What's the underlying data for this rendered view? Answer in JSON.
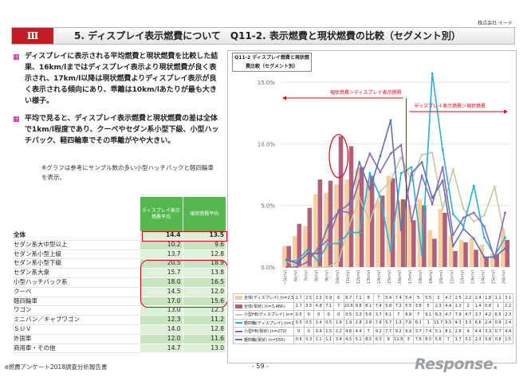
{
  "company": "株式会社 イード",
  "header": {
    "num": "Ⅲ",
    "title": "5. ディスプレイ表示燃費について　Q11-2. 表示燃費と現状燃費の比較（セグメント別）"
  },
  "bullets": [
    "ディスプレイに表示される平均燃費と現状燃費を比較した結果、16km/lまではディスプレイ表示より現状燃費が良く表示され、17km/l以降は現状燃費よりディスプレイ表示が良く表示される傾向にあり、乖離は10km/lあたりが最も大きい様子。",
    "平均で見ると、ディスプレイ表示燃費と現状燃費の差は全体で1km/l程度であり、クーペやセダン系小型下級、小型ハッチバック、軽四輪車でその乖離がやや大きい。"
  ],
  "note": "※グラフは参考にサンプル数の多い小型ハッチバックと軽四輪車を表示。",
  "table": {
    "headers": [
      "ディスプレイ表示燃費平均",
      "現状燃費平均"
    ],
    "rows": [
      {
        "label": "全体",
        "a": "14.4",
        "b": "13.5"
      },
      {
        "label": "セダン系大中型以上",
        "a": "10.2",
        "b": "9.6"
      },
      {
        "label": "セダン系小型上級",
        "a": "13.7",
        "b": "12.8"
      },
      {
        "label": "セダン系小型下級",
        "a": "20.5",
        "b": "18.9"
      },
      {
        "label": "セダン系大衆",
        "a": "15.7",
        "b": "13.8"
      },
      {
        "label": "小型ハッチバック系",
        "a": "18.0",
        "b": "16.5"
      },
      {
        "label": "クーペ",
        "a": "14.5",
        "b": "12.0"
      },
      {
        "label": "軽四輪車",
        "a": "17.0",
        "b": "15.6"
      },
      {
        "label": "ワゴン",
        "a": "13.0",
        "b": "12.3"
      },
      {
        "label": "ミニバン／キャブワゴン",
        "a": "12.3",
        "b": "11.2"
      },
      {
        "label": "ＳＵＶ",
        "a": "14.0",
        "b": "12.8"
      },
      {
        "label": "外国車",
        "a": "12.0",
        "b": "11.6"
      },
      {
        "label": "商用車・その他",
        "a": "14.7",
        "b": "13.0"
      }
    ]
  },
  "chart_title": "Q11-2 ディスプレイ燃費と現状燃費比較（セグメント別）",
  "annotations": {
    "left": "現状燃費＞ディスプレイ表示燃費",
    "right": "ディスプレイ表示燃費＞現状燃費"
  },
  "chart_data": {
    "type": "bar+line",
    "ylim": [
      0,
      15
    ],
    "yticks": [
      "0.0%",
      "5.0%",
      "10.0%",
      "15.0%"
    ],
    "categories": [
      "~5km/l",
      "6km/l",
      "7km/l",
      "8km/l",
      "9km/l",
      "10km/l",
      "11km/l",
      "12km/l",
      "13km/l",
      "14km/l",
      "15km/l",
      "16km/l",
      "17km/l",
      "18km/l",
      "19km/l",
      "20km/l",
      "21km/l",
      "22km/l",
      "23km/l",
      "24km/l",
      "25km/l",
      "26km/l",
      "27km/l",
      "28km/l",
      "29km/l",
      "30km/l~"
    ],
    "series": [
      {
        "name": "全体(ディスプレイ) (n=2,501)",
        "kind": "bar",
        "color": "#f5cfa0",
        "values": [
          1.7,
          2.5,
          3.3,
          5.9,
          6.0,
          6.7,
          7.1,
          8.0,
          7.0,
          5.4,
          7.4,
          5.4,
          5.0,
          5.5,
          3.0,
          4.7,
          2.5,
          2.2,
          2.4,
          1.8,
          1.1,
          3.1,
          0,
          0,
          0,
          0
        ]
      },
      {
        "name": "全体(現状) (n=3,466)",
        "kind": "bar",
        "color": "#b0607a",
        "values": [
          1.7,
          3.5,
          4.8,
          7.1,
          7.0,
          10.6,
          9.8,
          8.1,
          7.4,
          5.8,
          7.2,
          5.5,
          3.8,
          5.0,
          2.3,
          4.4,
          1.3,
          2.0,
          1.4,
          0.8,
          1.0,
          2.2,
          0,
          0,
          0,
          0
        ]
      },
      {
        "name": "小型HB(ディスプレイ) (n=214)",
        "kind": "line",
        "color": "#c8c8a0",
        "values": [
          0.5,
          0,
          0,
          0,
          0,
          0.5,
          3.3,
          5.6,
          3.7,
          6.1,
          7.0,
          8.9,
          7.0,
          9.1,
          9.3,
          4.7,
          7.9,
          4.7,
          3.7,
          4.2,
          6.5,
          2.3,
          0,
          0,
          0,
          0
        ]
      },
      {
        "name": "軽四輪(ディスプレイ) (n=211)",
        "kind": "line",
        "color": "#29b0d6",
        "values": [
          0.5,
          0.5,
          1.4,
          0.5,
          1.9,
          1.9,
          2.8,
          2.8,
          7.6,
          5.7,
          1.3,
          7.6,
          8.1,
          1.0,
          15.7,
          9.5,
          4.3,
          3.3,
          6.6,
          2.4,
          0.9,
          2.4,
          0,
          0,
          0,
          0
        ]
      },
      {
        "name": "小型HB(現状) (n=272)",
        "kind": "line",
        "color": "#8a6ab0",
        "values": [
          0,
          0,
          0.4,
          1.5,
          2.2,
          4.6,
          4.4,
          7.0,
          9.2,
          7.7,
          9.2,
          9.9,
          3.7,
          7.4,
          5.1,
          8.1,
          2.6,
          4.0,
          4.4,
          3.3,
          0.7,
          4.4,
          0,
          0,
          0,
          0
        ]
      },
      {
        "name": "軽四輪(現状) (n=555)",
        "kind": "line",
        "color": "#6070b0",
        "values": [
          0.6,
          0.3,
          1.1,
          1.1,
          3.4,
          4.5,
          5.1,
          8.5,
          6.3,
          9.0,
          11.9,
          3,
          7.6,
          8.5,
          5.6,
          7.0,
          1.7,
          3.1,
          2.3,
          0.8,
          0.8,
          1.5,
          0,
          0,
          0,
          0
        ]
      }
    ]
  },
  "footer": {
    "left": "e燃費アンケート2018調査分析報告書",
    "page": "- 59 -",
    "logo": "Response."
  }
}
